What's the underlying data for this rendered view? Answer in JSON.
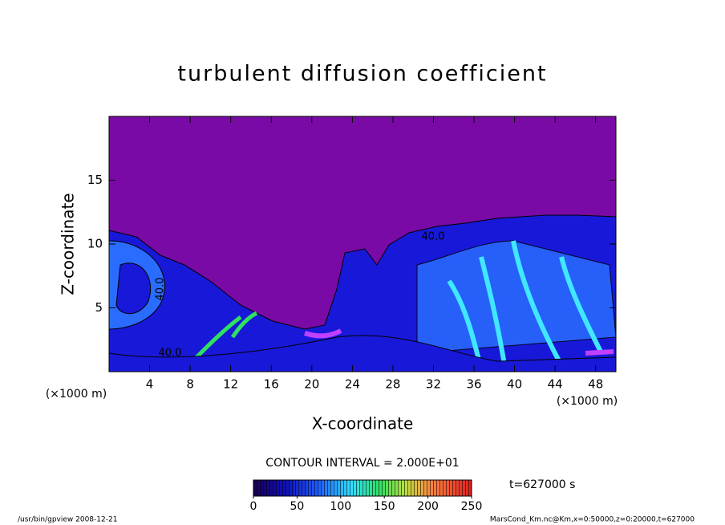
{
  "chart_data": {
    "type": "contour",
    "title": "turbulent diffusion coefficient",
    "xlabel": "X-coordinate",
    "ylabel": "Z-coordinate",
    "x_unit_label": "(×1000 m)",
    "xlim": [
      0,
      50
    ],
    "ylim": [
      0,
      20
    ],
    "xticks": [
      4,
      8,
      12,
      16,
      20,
      24,
      28,
      32,
      36,
      40,
      44,
      48
    ],
    "yticks": [
      5,
      10,
      15
    ],
    "contour_labels": [
      "40.0",
      "40.0",
      "40.0"
    ],
    "contour_interval_label": "CONTOUR INTERVAL = 2.000E+01",
    "time_label": "t=627000 s",
    "colorbar": {
      "lim": [
        0,
        250
      ],
      "ticks": [
        0,
        50,
        100,
        150,
        200,
        250
      ]
    },
    "footer_left": "/usr/bin/gpview  2008-12-21",
    "footer_right": "MarsCond_Km.nc@Km,x=0:50000,z=0:20000,t=627000"
  }
}
